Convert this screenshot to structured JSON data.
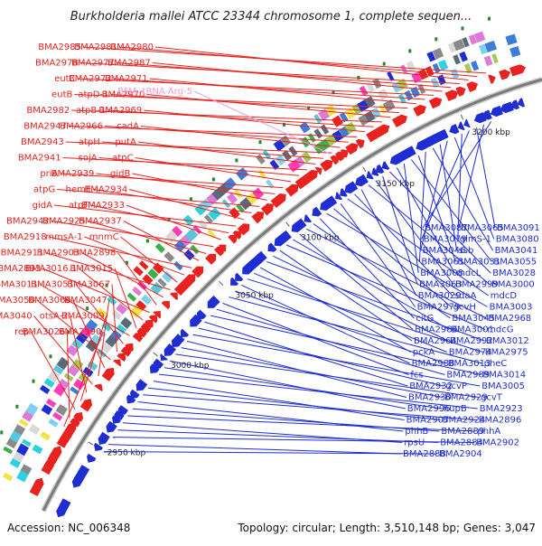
{
  "title": "Burkholderia mallei ATCC 23344 chromosome 1, complete sequen...",
  "footer": {
    "accession": "Accession: NC_006348",
    "summary": "Topology: circular; Length: 3,510,148 bp; Genes: 3,047"
  },
  "colors": {
    "forward": "#e8231f",
    "reverse": "#1f2ed2",
    "trna": "#f39ad2",
    "backbone": "#888888"
  },
  "ticks": [
    "3200 kbp",
    "3150 kbp",
    "3100 kbp",
    "3050 kbp",
    "3000 kbp",
    "2950 kbp"
  ],
  "forward_labels": [
    "BMA2985",
    "BMA2981",
    "BMA2980",
    "BMA2978",
    "BMA2977",
    "BMA2987",
    "eutC",
    "BMA2972",
    "BMA2971",
    "eutB",
    "atpD-1",
    "BMA2970",
    "BMA2982",
    "atpB-1",
    "BMA2969",
    "BMA2947",
    "BMA2966",
    "cadA",
    "BMA2943",
    "atpH",
    "putA",
    "BMA2941",
    "sojA",
    "atpC",
    "priA",
    "BMA2939",
    "gidB",
    "atpG",
    "hemE",
    "BMA2934",
    "gidA",
    "atpF",
    "BMA2933",
    "BMA2942",
    "BMA2925",
    "BMA2937",
    "BMA2918",
    "mmsA-1",
    "mnmC",
    "BMA2911",
    "BMA2903",
    "BMA2898",
    "BMA2893",
    "BMA3016.1",
    "BMA3015",
    "BMA3011",
    "BMA3051",
    "BMA3067",
    "BMA3050",
    "BMA3066",
    "BMA3047",
    "BMA3040",
    "otsA-2",
    "BMA3009",
    "rep",
    "BMA3026",
    "BMA2990"
  ],
  "trna_labels": [
    "BMA_tRNA-Arg-5"
  ],
  "reverse_labels": [
    "BMA3087",
    "BMA3065",
    "BMA3091",
    "BMA3079",
    "glmS-1",
    "BMA3080",
    "BMA3046",
    "ssb",
    "BMA3041",
    "BMA3061",
    "BMA3031",
    "BMA3055",
    "BMA3008",
    "mdcL",
    "BMA3028",
    "BMA3063",
    "BMA2999",
    "BMA3000",
    "BMA3029",
    "sdaA",
    "mdcD",
    "BMA2979",
    "gcvH",
    "BMA3003",
    "citG",
    "BMA3045",
    "BMA2968",
    "BMA2986",
    "BMA3001",
    "mdcG",
    "BMA2964",
    "BMA2992",
    "BMA3012",
    "pckA",
    "BMA2974",
    "BMA2975",
    "BMA2988",
    "BMA3013",
    "pheC",
    "fcs",
    "BMA2989",
    "BMA3014",
    "BMA2932",
    "gcvP",
    "BMA3005",
    "BMA2930",
    "BMA2929",
    "gcvT",
    "BMA2996",
    "hupB",
    "BMA2923",
    "BMA2907",
    "BMA2924",
    "BMA2896",
    "phhB",
    "BMA2889",
    "phhA",
    "rpsU",
    "BMA2884",
    "BMA2902",
    "BMA2888",
    "BMA2904"
  ]
}
